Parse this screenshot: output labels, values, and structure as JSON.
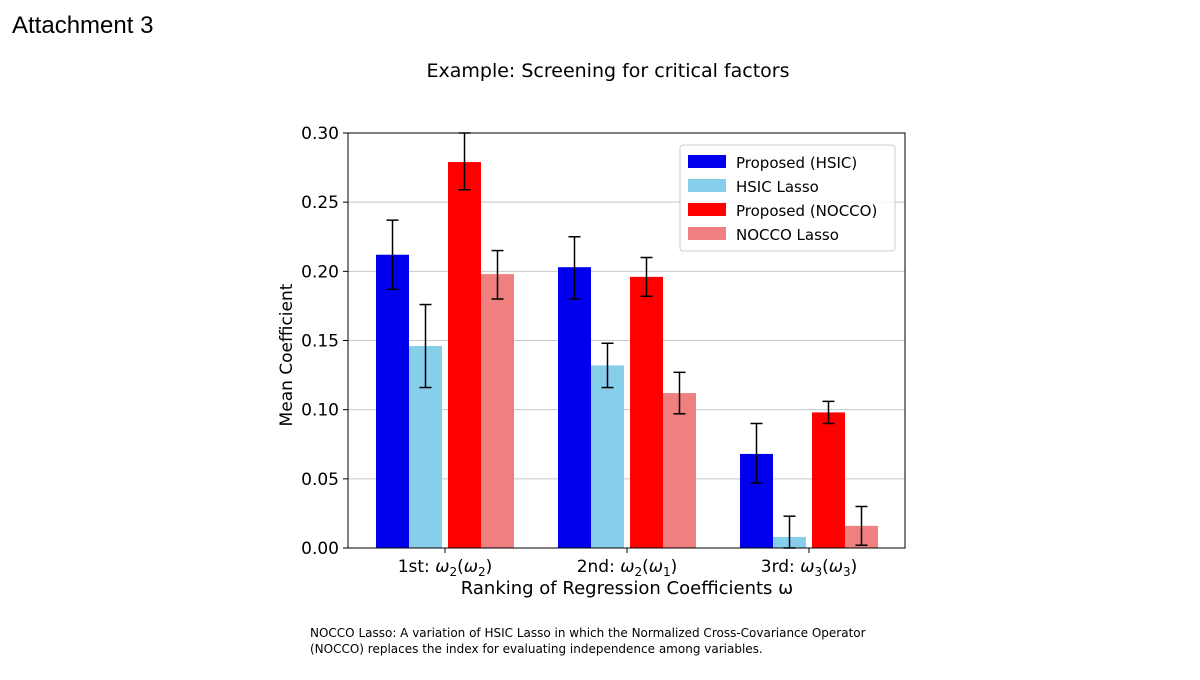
{
  "page": {
    "attachment_label": "Attachment 3",
    "heading": "Example: Screening for critical factors",
    "note_line1": "NOCCO Lasso: A variation of HSIC Lasso in which the Normalized Cross-Covariance Operator",
    "note_line2": "(NOCCO) replaces the index for evaluating independence among variables."
  },
  "chart_data": {
    "type": "bar",
    "title": "",
    "xlabel": "Ranking of Regression Coefficients ω",
    "ylabel": "Mean Coefficient",
    "ylim": [
      0,
      0.3
    ],
    "yticks": [
      "0.00",
      "0.05",
      "0.10",
      "0.15",
      "0.20",
      "0.25",
      "0.30"
    ],
    "ytick_values": [
      0,
      0.05,
      0.1,
      0.15,
      0.2,
      0.25,
      0.3
    ],
    "grid": true,
    "legend_position": "top-right",
    "categories": [
      {
        "prefix": "1st: ",
        "main": "2",
        "paren": "2",
        "tick": 1
      },
      {
        "prefix": "2nd: ",
        "main": "2",
        "paren": "1",
        "tick": 2
      },
      {
        "prefix": "3rd: ",
        "main": "3",
        "paren": "3",
        "tick": 3
      }
    ],
    "series": [
      {
        "name": "Proposed (HSIC)",
        "color": "#0000ee",
        "values": [
          0.212,
          0.203,
          0.068
        ],
        "err_low": [
          0.187,
          0.18,
          0.047
        ],
        "err_high": [
          0.237,
          0.225,
          0.09
        ]
      },
      {
        "name": "HSIC Lasso",
        "color": "#87ceeb",
        "values": [
          0.146,
          0.132,
          0.008
        ],
        "err_low": [
          0.116,
          0.116,
          0.0
        ],
        "err_high": [
          0.176,
          0.148,
          0.023
        ]
      },
      {
        "name": "Proposed (NOCCO)",
        "color": "#ff0000",
        "values": [
          0.279,
          0.196,
          0.098
        ],
        "err_low": [
          0.259,
          0.182,
          0.09
        ],
        "err_high": [
          0.3,
          0.21,
          0.106
        ]
      },
      {
        "name": "NOCCO Lasso",
        "color": "#f08080",
        "values": [
          0.198,
          0.112,
          0.016
        ],
        "err_low": [
          0.18,
          0.097,
          0.002
        ],
        "err_high": [
          0.215,
          0.127,
          0.03
        ]
      }
    ]
  }
}
